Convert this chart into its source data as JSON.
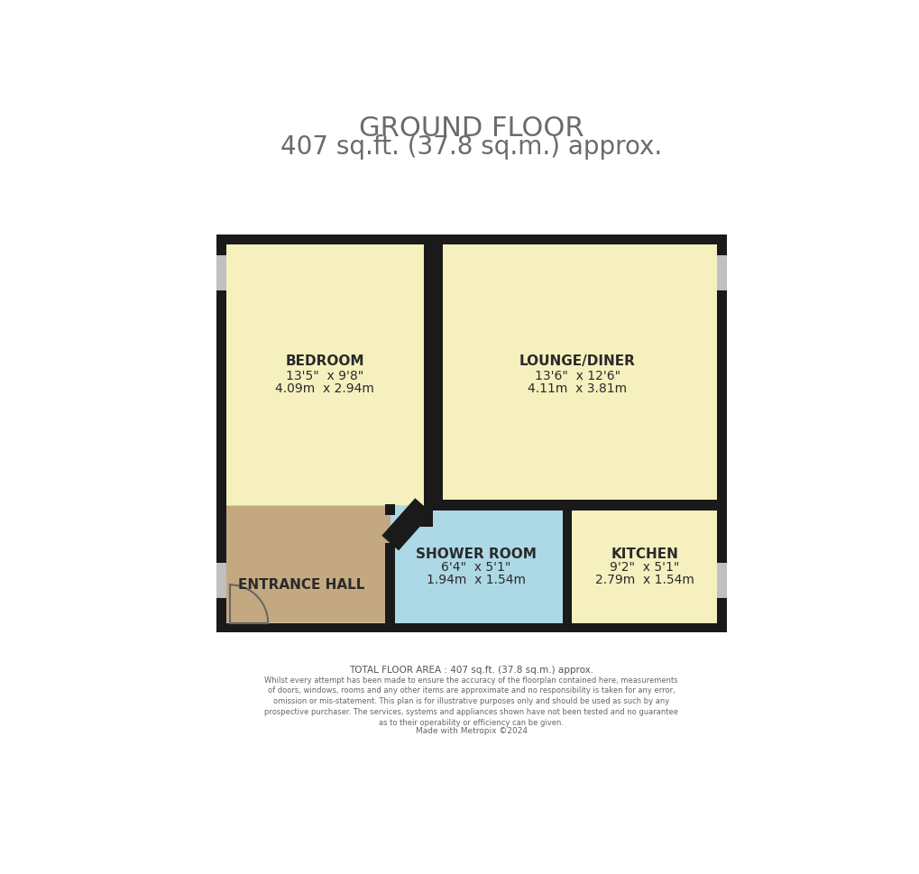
{
  "title_line1": "GROUND FLOOR",
  "title_line2": "407 sq.ft. (37.8 sq.m.) approx.",
  "title_color": "#6b6b6b",
  "title_fontsize": 22,
  "subtitle_fontsize": 20,
  "bg_color": "#ffffff",
  "wall_color": "#1a1a1a",
  "room_yellow": "#f5f0be",
  "room_brown": "#c4a882",
  "room_blue": "#add8e6",
  "grey_window": "#c0c0c0",
  "footer_text1": "TOTAL FLOOR AREA : 407 sq.ft. (37.8 sq.m.) approx.",
  "footer_text2": "Whilst every attempt has been made to ensure the accuracy of the floorplan contained here, measurements\nof doors, windows, rooms and any other items are approximate and no responsibility is taken for any error,\nomission or mis-statement. This plan is for illustrative purposes only and should be used as such by any\nprospective purchaser. The services, systems and appliances shown have not been tested and no guarantee\nas to their operability or efficiency can be given.",
  "footer_text3": "Made with Metropix ©2024",
  "rooms": {
    "bedroom": {
      "label": "BEDROOM",
      "dim1": "13'5\"  x 9'8\"",
      "dim2": "4.09m  x 2.94m"
    },
    "lounge": {
      "label": "LOUNGE/DINER",
      "dim1": "13'6\"  x 12'6\"",
      "dim2": "4.11m  x 3.81m"
    },
    "entrance": {
      "label": "ENTRANCE HALL"
    },
    "shower": {
      "label": "SHOWER ROOM",
      "dim1": "6'4\"  x 5'1\"",
      "dim2": "1.94m  x 1.54m"
    },
    "kitchen": {
      "label": "KITCHEN",
      "dim1": "9'2\"  x 5'1\"",
      "dim2": "2.79m  x 1.54m"
    }
  }
}
